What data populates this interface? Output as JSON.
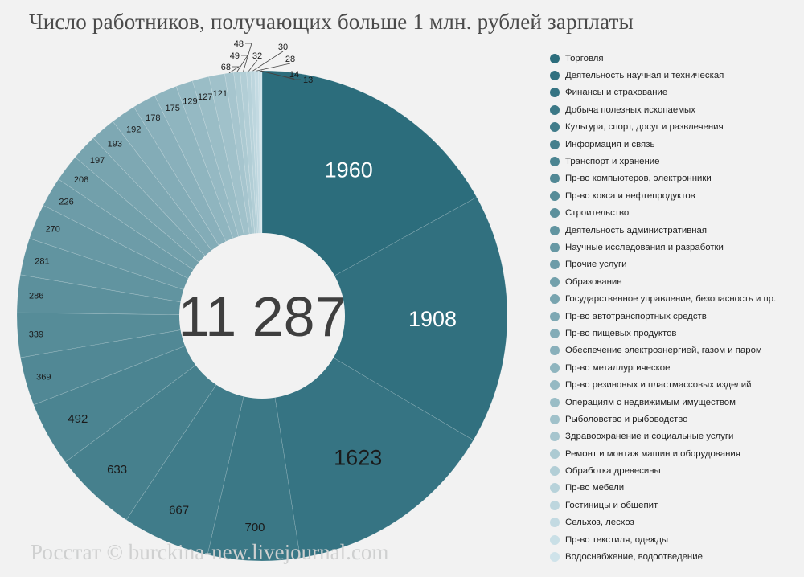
{
  "chart_data": {
    "type": "pie",
    "title": "Число работников, получающих больше 1 млн. рублей зарплаты",
    "total_label": "11 287",
    "legend_position": "right",
    "categories": [
      "Торговля",
      "Деятельность научная и техническая",
      "Финансы и страхование",
      "Добыча полезных ископаемых",
      "Культура, спорт, досуг и развлечения",
      "Информация и связь",
      "Транспорт и хранение",
      "Пр-во компьютеров, электронники",
      "Пр-во кокса и нефтепродуктов",
      "Строительство",
      "Деятельность административная",
      "Научные исследования и разработки",
      "Прочие услуги",
      "Образование",
      "Государственное управление, безопасность и пр.",
      "Пр-во автотранспортных средств",
      "Пр-во пищевых продуктов",
      "Обеспечение электроэнергией, газом и паром",
      "Пр-во металлургическое",
      "Пр-во резиновых и пластмассовых изделий",
      "Операциям с недвижимым имуществом",
      "Рыболовство и рыбоводство",
      "Здравоохранение и социальные услуги",
      "Ремонт и монтаж машин и оборудования",
      "Обработка древесины",
      "Пр-во мебели",
      "Гостиницы и общепит",
      "Сельхоз, лесхоз",
      "Пр-во текстиля, одежды",
      "Водоснабжение, водоотведение"
    ],
    "values": [
      1960,
      1908,
      1623,
      700,
      667,
      633,
      492,
      369,
      339,
      286,
      281,
      270,
      226,
      208,
      197,
      193,
      192,
      178,
      175,
      129,
      127,
      121,
      68,
      49,
      48,
      32,
      30,
      28,
      14,
      13
    ],
    "color_start": "#2c6d7c",
    "color_end": "#cfe3ea"
  },
  "watermark": "Росстат © burckina-new.livejournal.com"
}
